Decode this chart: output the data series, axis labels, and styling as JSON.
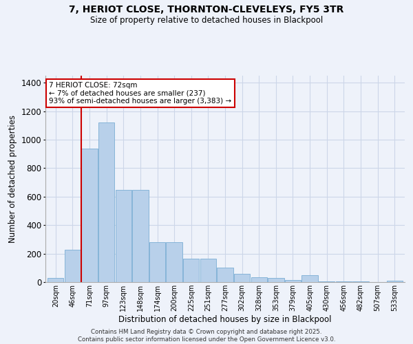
{
  "title_line1": "7, HERIOT CLOSE, THORNTON-CLEVELEYS, FY5 3TR",
  "title_line2": "Size of property relative to detached houses in Blackpool",
  "xlabel": "Distribution of detached houses by size in Blackpool",
  "ylabel": "Number of detached properties",
  "categories": [
    "20sqm",
    "46sqm",
    "71sqm",
    "97sqm",
    "123sqm",
    "148sqm",
    "174sqm",
    "200sqm",
    "225sqm",
    "251sqm",
    "277sqm",
    "302sqm",
    "328sqm",
    "353sqm",
    "379sqm",
    "405sqm",
    "430sqm",
    "456sqm",
    "482sqm",
    "507sqm",
    "533sqm"
  ],
  "values": [
    30,
    225,
    940,
    1120,
    650,
    650,
    280,
    280,
    165,
    165,
    100,
    60,
    35,
    30,
    15,
    50,
    5,
    5,
    5,
    0,
    10
  ],
  "bar_color": "#b8d0ea",
  "bar_edge_color": "#7aadd4",
  "grid_color": "#ccd6e8",
  "background_color": "#eef2fa",
  "vline_x_index": 2,
  "vline_color": "#cc0000",
  "annotation_text": "7 HERIOT CLOSE: 72sqm\n← 7% of detached houses are smaller (237)\n93% of semi-detached houses are larger (3,383) →",
  "annotation_box_color": "#ffffff",
  "annotation_box_edge": "#cc0000",
  "ylim": [
    0,
    1450
  ],
  "yticks": [
    0,
    200,
    400,
    600,
    800,
    1000,
    1200,
    1400
  ],
  "footer": "Contains HM Land Registry data © Crown copyright and database right 2025.\nContains public sector information licensed under the Open Government Licence v3.0."
}
